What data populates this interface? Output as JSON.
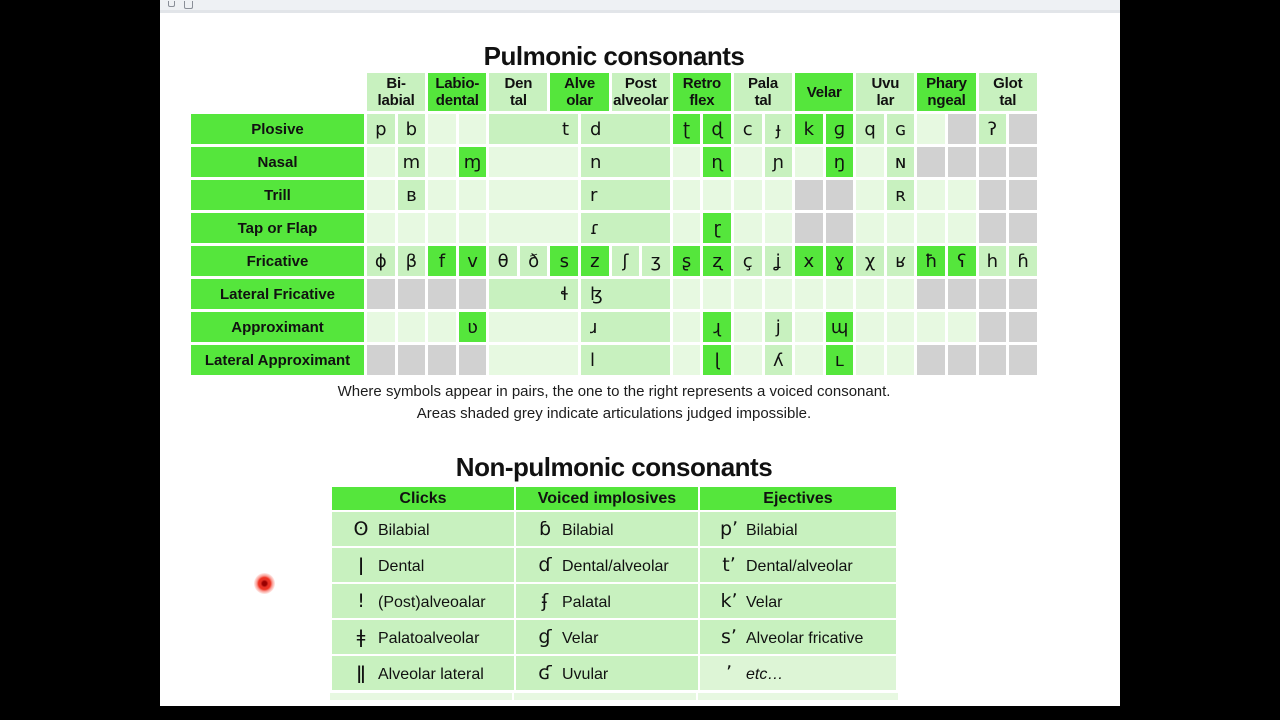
{
  "page": {
    "pulmonic_title": "Pulmonic consonants",
    "nonpulmonic_title": "Non-pulmonic consonants",
    "notes": [
      "Where symbols appear in pairs, the one to the right represents a voiced consonant.",
      "Areas shaded grey indicate articulations judged impossible."
    ]
  },
  "colors": {
    "highlight_green": "#55e63c",
    "occupied_green": "#c8f1bf",
    "empty_green": "#e7f9e1",
    "impossible_grey": "#d1d1d1",
    "cursor_red": "#e63226"
  },
  "pulmonic": {
    "col_headers": [
      {
        "label": "Bi-\nlabial",
        "bright": false
      },
      {
        "label": "Labio-\ndental",
        "bright": true
      },
      {
        "label": "Den\ntal",
        "bright": false
      },
      {
        "label": "Alve\nolar",
        "bright": true
      },
      {
        "label": "Post\nalveolar",
        "bright": false
      },
      {
        "label": "Retro\nflex",
        "bright": true
      },
      {
        "label": "Pala\ntal",
        "bright": false
      },
      {
        "label": "Velar",
        "bright": true
      },
      {
        "label": "Uvu\nlar",
        "bright": false
      },
      {
        "label": "Phary\nngeal",
        "bright": true
      },
      {
        "label": "Glot\ntal",
        "bright": false
      }
    ],
    "rows": [
      {
        "label": "Plosive",
        "cells": [
          {
            "t": "p",
            "bg": "p"
          },
          {
            "t": "b",
            "bg": "p"
          },
          {
            "bg": "l"
          },
          {
            "bg": "l"
          },
          {
            "t": "t",
            "bg": "p",
            "span": 3,
            "al": "R"
          },
          {
            "t": "d",
            "bg": "p",
            "span": 3,
            "al": "L"
          },
          {
            "t": "ʈ",
            "bg": "b"
          },
          {
            "t": "ɖ",
            "bg": "b"
          },
          {
            "t": "c",
            "bg": "p"
          },
          {
            "t": "ɟ",
            "bg": "p"
          },
          {
            "t": "k",
            "bg": "b"
          },
          {
            "t": "ɡ",
            "bg": "b"
          },
          {
            "t": "q",
            "bg": "p"
          },
          {
            "t": "ɢ",
            "bg": "p"
          },
          {
            "bg": "l"
          },
          {
            "bg": "g"
          },
          {
            "t": "ʔ",
            "bg": "p"
          },
          {
            "bg": "g"
          }
        ]
      },
      {
        "label": "Nasal",
        "cells": [
          {
            "bg": "l"
          },
          {
            "t": "m",
            "bg": "p"
          },
          {
            "bg": "l"
          },
          {
            "t": "ɱ",
            "bg": "b"
          },
          {
            "bg": "l",
            "span": 3
          },
          {
            "t": "n",
            "bg": "p",
            "span": 3,
            "al": "L"
          },
          {
            "bg": "l"
          },
          {
            "t": "ɳ",
            "bg": "b"
          },
          {
            "bg": "l"
          },
          {
            "t": "ɲ",
            "bg": "p"
          },
          {
            "bg": "l"
          },
          {
            "t": "ŋ",
            "bg": "b"
          },
          {
            "bg": "l"
          },
          {
            "t": "ɴ",
            "bg": "p"
          },
          {
            "bg": "g"
          },
          {
            "bg": "g"
          },
          {
            "bg": "g"
          },
          {
            "bg": "g"
          }
        ]
      },
      {
        "label": "Trill",
        "cells": [
          {
            "bg": "l"
          },
          {
            "t": "ʙ",
            "bg": "p"
          },
          {
            "bg": "l"
          },
          {
            "bg": "l"
          },
          {
            "bg": "l",
            "span": 3
          },
          {
            "t": "r",
            "bg": "p",
            "span": 3,
            "al": "L"
          },
          {
            "bg": "l"
          },
          {
            "bg": "l"
          },
          {
            "bg": "l"
          },
          {
            "bg": "l"
          },
          {
            "bg": "g"
          },
          {
            "bg": "g"
          },
          {
            "bg": "l"
          },
          {
            "t": "ʀ",
            "bg": "p"
          },
          {
            "bg": "l"
          },
          {
            "bg": "l"
          },
          {
            "bg": "g"
          },
          {
            "bg": "g"
          }
        ]
      },
      {
        "label": "Tap or Flap",
        "cells": [
          {
            "bg": "l"
          },
          {
            "bg": "l"
          },
          {
            "bg": "l"
          },
          {
            "bg": "l"
          },
          {
            "bg": "l",
            "span": 3
          },
          {
            "t": "ɾ",
            "bg": "p",
            "span": 3,
            "al": "L"
          },
          {
            "bg": "l"
          },
          {
            "t": "ɽ",
            "bg": "b"
          },
          {
            "bg": "l"
          },
          {
            "bg": "l"
          },
          {
            "bg": "g"
          },
          {
            "bg": "g"
          },
          {
            "bg": "l"
          },
          {
            "bg": "l"
          },
          {
            "bg": "l"
          },
          {
            "bg": "l"
          },
          {
            "bg": "g"
          },
          {
            "bg": "g"
          }
        ]
      },
      {
        "label": "Fricative",
        "cells": [
          {
            "t": "ɸ",
            "bg": "p"
          },
          {
            "t": "β",
            "bg": "p"
          },
          {
            "t": "f",
            "bg": "b"
          },
          {
            "t": "v",
            "bg": "b"
          },
          {
            "t": "θ",
            "bg": "p"
          },
          {
            "t": "ð",
            "bg": "p"
          },
          {
            "t": "s",
            "bg": "b"
          },
          {
            "t": "z",
            "bg": "b"
          },
          {
            "t": "ʃ",
            "bg": "p"
          },
          {
            "t": "ʒ",
            "bg": "p"
          },
          {
            "t": "ʂ",
            "bg": "b"
          },
          {
            "t": "ʐ",
            "bg": "b"
          },
          {
            "t": "ç",
            "bg": "p"
          },
          {
            "t": "ʝ",
            "bg": "p"
          },
          {
            "t": "x",
            "bg": "b"
          },
          {
            "t": "ɣ",
            "bg": "b"
          },
          {
            "t": "χ",
            "bg": "p"
          },
          {
            "t": "ʁ",
            "bg": "p"
          },
          {
            "t": "ħ",
            "bg": "b"
          },
          {
            "t": "ʕ",
            "bg": "b"
          },
          {
            "t": "h",
            "bg": "p"
          },
          {
            "t": "ɦ",
            "bg": "p"
          }
        ]
      },
      {
        "label": "Lateral Fricative",
        "cells": [
          {
            "bg": "g"
          },
          {
            "bg": "g"
          },
          {
            "bg": "g"
          },
          {
            "bg": "g"
          },
          {
            "t": "ɬ",
            "bg": "p",
            "span": 3,
            "al": "R"
          },
          {
            "t": "ɮ",
            "bg": "p",
            "span": 3,
            "al": "L"
          },
          {
            "bg": "l"
          },
          {
            "bg": "l"
          },
          {
            "bg": "l"
          },
          {
            "bg": "l"
          },
          {
            "bg": "l"
          },
          {
            "bg": "l"
          },
          {
            "bg": "l"
          },
          {
            "bg": "l"
          },
          {
            "bg": "g"
          },
          {
            "bg": "g"
          },
          {
            "bg": "g"
          },
          {
            "bg": "g"
          }
        ]
      },
      {
        "label": "Approximant",
        "cells": [
          {
            "bg": "l"
          },
          {
            "bg": "l"
          },
          {
            "bg": "l"
          },
          {
            "t": "ʋ",
            "bg": "b"
          },
          {
            "bg": "l",
            "span": 3
          },
          {
            "t": "ɹ",
            "bg": "p",
            "span": 3,
            "al": "L"
          },
          {
            "bg": "l"
          },
          {
            "t": "ɻ",
            "bg": "b"
          },
          {
            "bg": "l"
          },
          {
            "t": "j",
            "bg": "p"
          },
          {
            "bg": "l"
          },
          {
            "t": "ɰ",
            "bg": "b"
          },
          {
            "bg": "l"
          },
          {
            "bg": "l"
          },
          {
            "bg": "l"
          },
          {
            "bg": "l"
          },
          {
            "bg": "g"
          },
          {
            "bg": "g"
          }
        ]
      },
      {
        "label": "Lateral Approximant",
        "cells": [
          {
            "bg": "g"
          },
          {
            "bg": "g"
          },
          {
            "bg": "g"
          },
          {
            "bg": "g"
          },
          {
            "bg": "l",
            "span": 3
          },
          {
            "t": "l",
            "bg": "p",
            "span": 3,
            "al": "L"
          },
          {
            "bg": "l"
          },
          {
            "t": "ɭ",
            "bg": "b"
          },
          {
            "bg": "l"
          },
          {
            "t": "ʎ",
            "bg": "p"
          },
          {
            "bg": "l"
          },
          {
            "t": "ʟ",
            "bg": "b"
          },
          {
            "bg": "l"
          },
          {
            "bg": "l"
          },
          {
            "bg": "g"
          },
          {
            "bg": "g"
          },
          {
            "bg": "g"
          },
          {
            "bg": "g"
          }
        ]
      }
    ]
  },
  "nonpulmonic": {
    "headers": [
      "Clicks",
      "Voiced implosives",
      "Ejectives"
    ],
    "rows": [
      [
        {
          "sym": "ʘ",
          "label": "Bilabial"
        },
        {
          "sym": "ɓ",
          "label": "Bilabial"
        },
        {
          "sym": "pʼ",
          "label": "Bilabial"
        }
      ],
      [
        {
          "sym": "ǀ",
          "label": "Dental"
        },
        {
          "sym": "ɗ",
          "label": "Dental/alveolar"
        },
        {
          "sym": "tʼ",
          "label": "Dental/alveolar"
        }
      ],
      [
        {
          "sym": "ǃ",
          "label": "(Post)alveoalar"
        },
        {
          "sym": "ʄ",
          "label": "Palatal"
        },
        {
          "sym": "kʼ",
          "label": "Velar"
        }
      ],
      [
        {
          "sym": "ǂ",
          "label": "Palatoalveolar"
        },
        {
          "sym": "ɠ",
          "label": "Velar"
        },
        {
          "sym": "sʼ",
          "label": "Alveolar fricative"
        }
      ],
      [
        {
          "sym": "ǁ",
          "label": "Alveolar lateral"
        },
        {
          "sym": "ʛ",
          "label": "Uvular"
        },
        {
          "sym": "ʼ",
          "label": "etc…",
          "italic": true,
          "lighter": true
        }
      ]
    ]
  }
}
